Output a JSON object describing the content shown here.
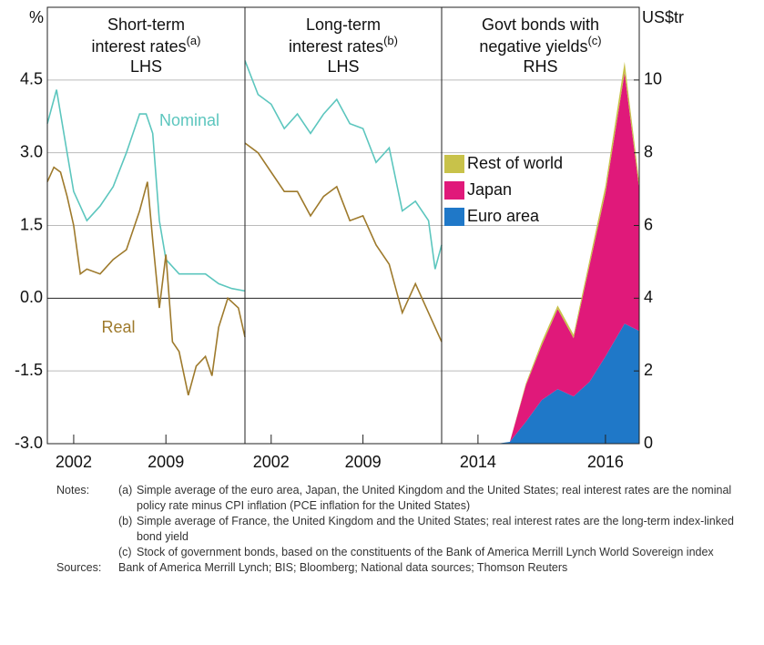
{
  "chart_data": [
    {
      "type": "line",
      "title_lines": [
        "Short-term",
        "interest rates"
      ],
      "note_ref": "(a)",
      "side": "LHS",
      "y_label": "%",
      "xlim": [
        2000,
        2015
      ],
      "xticks": [
        2002,
        2009
      ],
      "ylim": [
        -3,
        6
      ],
      "yticks": [
        {
          "value": -3,
          "label": "-3.0"
        },
        -1.5,
        {
          "value": 0,
          "label": "0.0"
        },
        1.5,
        {
          "value": 3,
          "label": "3.0"
        },
        4.5
      ],
      "series": [
        {
          "name": "Nominal",
          "color": "#5cc6be",
          "x": [
            2000,
            2000.7,
            2001.5,
            2002,
            2003,
            2004,
            2005,
            2006,
            2007,
            2007.5,
            2008,
            2008.5,
            2009,
            2010,
            2011,
            2012,
            2013,
            2014,
            2015
          ],
          "values": [
            3.6,
            4.3,
            3.0,
            2.2,
            1.6,
            1.9,
            2.3,
            3.0,
            3.8,
            3.8,
            3.4,
            1.6,
            0.8,
            0.5,
            0.5,
            0.5,
            0.3,
            0.2,
            0.15
          ]
        },
        {
          "name": "Real",
          "color": "#9e7a2c",
          "x": [
            2000,
            2000.5,
            2001,
            2001.5,
            2002,
            2002.5,
            2003,
            2004,
            2005,
            2006,
            2007,
            2007.6,
            2008,
            2008.5,
            2009,
            2009.5,
            2010,
            2010.7,
            2011.3,
            2012,
            2012.5,
            2013,
            2013.7,
            2014.5,
            2015
          ],
          "values": [
            2.4,
            2.7,
            2.6,
            2.1,
            1.5,
            0.5,
            0.6,
            0.5,
            0.8,
            1.0,
            1.8,
            2.4,
            1.2,
            -0.2,
            0.9,
            -0.9,
            -1.1,
            -2.0,
            -1.4,
            -1.2,
            -1.6,
            -0.6,
            0.0,
            -0.2,
            -0.8
          ]
        }
      ]
    },
    {
      "type": "line",
      "title_lines": [
        "Long-term",
        "interest rates"
      ],
      "note_ref": "(b)",
      "side": "LHS",
      "xlim": [
        2000,
        2015
      ],
      "xticks": [
        2002,
        2009
      ],
      "ylim": [
        -3,
        6
      ],
      "series": [
        {
          "color": "#5cc6be",
          "x": [
            2000,
            2001,
            2002,
            2003,
            2004,
            2005,
            2006,
            2007,
            2008,
            2009,
            2010,
            2011,
            2012,
            2013,
            2014,
            2014.5,
            2015
          ],
          "values": [
            4.9,
            4.2,
            4.0,
            3.5,
            3.8,
            3.4,
            3.8,
            4.1,
            3.6,
            3.5,
            2.8,
            3.1,
            1.8,
            2.0,
            1.6,
            0.6,
            1.1
          ]
        },
        {
          "color": "#9e7a2c",
          "x": [
            2000,
            2001,
            2002,
            2003,
            2004,
            2005,
            2006,
            2007,
            2008,
            2009,
            2010,
            2011,
            2012,
            2013,
            2014,
            2015
          ],
          "values": [
            3.2,
            3.0,
            2.6,
            2.2,
            2.2,
            1.7,
            2.1,
            2.3,
            1.6,
            1.7,
            1.1,
            0.7,
            -0.3,
            0.3,
            -0.3,
            -0.9
          ]
        }
      ]
    },
    {
      "type": "stacked-area",
      "title_lines": [
        "Govt bonds with",
        "negative yields"
      ],
      "note_ref": "(c)",
      "side": "RHS",
      "y2_label": "US$tr",
      "xlim": [
        2013.43,
        2016.53
      ],
      "xticks": [
        2014,
        2016
      ],
      "y2lim": [
        0,
        12
      ],
      "y2ticks": [
        0,
        2,
        4,
        6,
        8,
        10
      ],
      "x": [
        2013.5,
        2014.0,
        2014.3,
        2014.5,
        2014.75,
        2015.0,
        2015.25,
        2015.5,
        2015.75,
        2016.0,
        2016.3,
        2016.53
      ],
      "series": [
        {
          "name": "Euro area",
          "color": "#1f78c8",
          "axis": "y2",
          "values": [
            0,
            0,
            0,
            0.05,
            0.6,
            1.2,
            1.5,
            1.3,
            1.7,
            2.4,
            3.3,
            3.1
          ]
        },
        {
          "name": "Japan",
          "color": "#e0197a",
          "axis": "y2",
          "values": [
            0,
            0,
            0,
            0,
            1.0,
            1.5,
            2.2,
            1.6,
            3.2,
            4.5,
            6.9,
            3.9
          ]
        },
        {
          "name": "Rest of world",
          "color": "#c8c24a",
          "axis": "y2",
          "values": [
            0,
            0,
            0,
            0,
            0.05,
            0.1,
            0.1,
            0.1,
            0.15,
            0.2,
            0.3,
            0.2
          ]
        }
      ]
    }
  ],
  "notes": {
    "label": "Notes:",
    "items": [
      {
        "ref": "(a)",
        "text": "Simple average of the euro area, Japan, the United Kingdom and the United States; real interest rates are the nominal policy rate minus CPI inflation (PCE inflation for the United States)"
      },
      {
        "ref": "(b)",
        "text": "Simple average of France, the United Kingdom and the United States; real interest rates are the long-term index-linked bond yield"
      },
      {
        "ref": "(c)",
        "text": "Stock of government bonds, based on the constituents of the Bank of America Merrill Lynch World Sovereign index"
      }
    ]
  },
  "sources": {
    "label": "Sources:",
    "text": "Bank of America Merrill Lynch; BIS; Bloomberg; National data sources; Thomson Reuters"
  }
}
